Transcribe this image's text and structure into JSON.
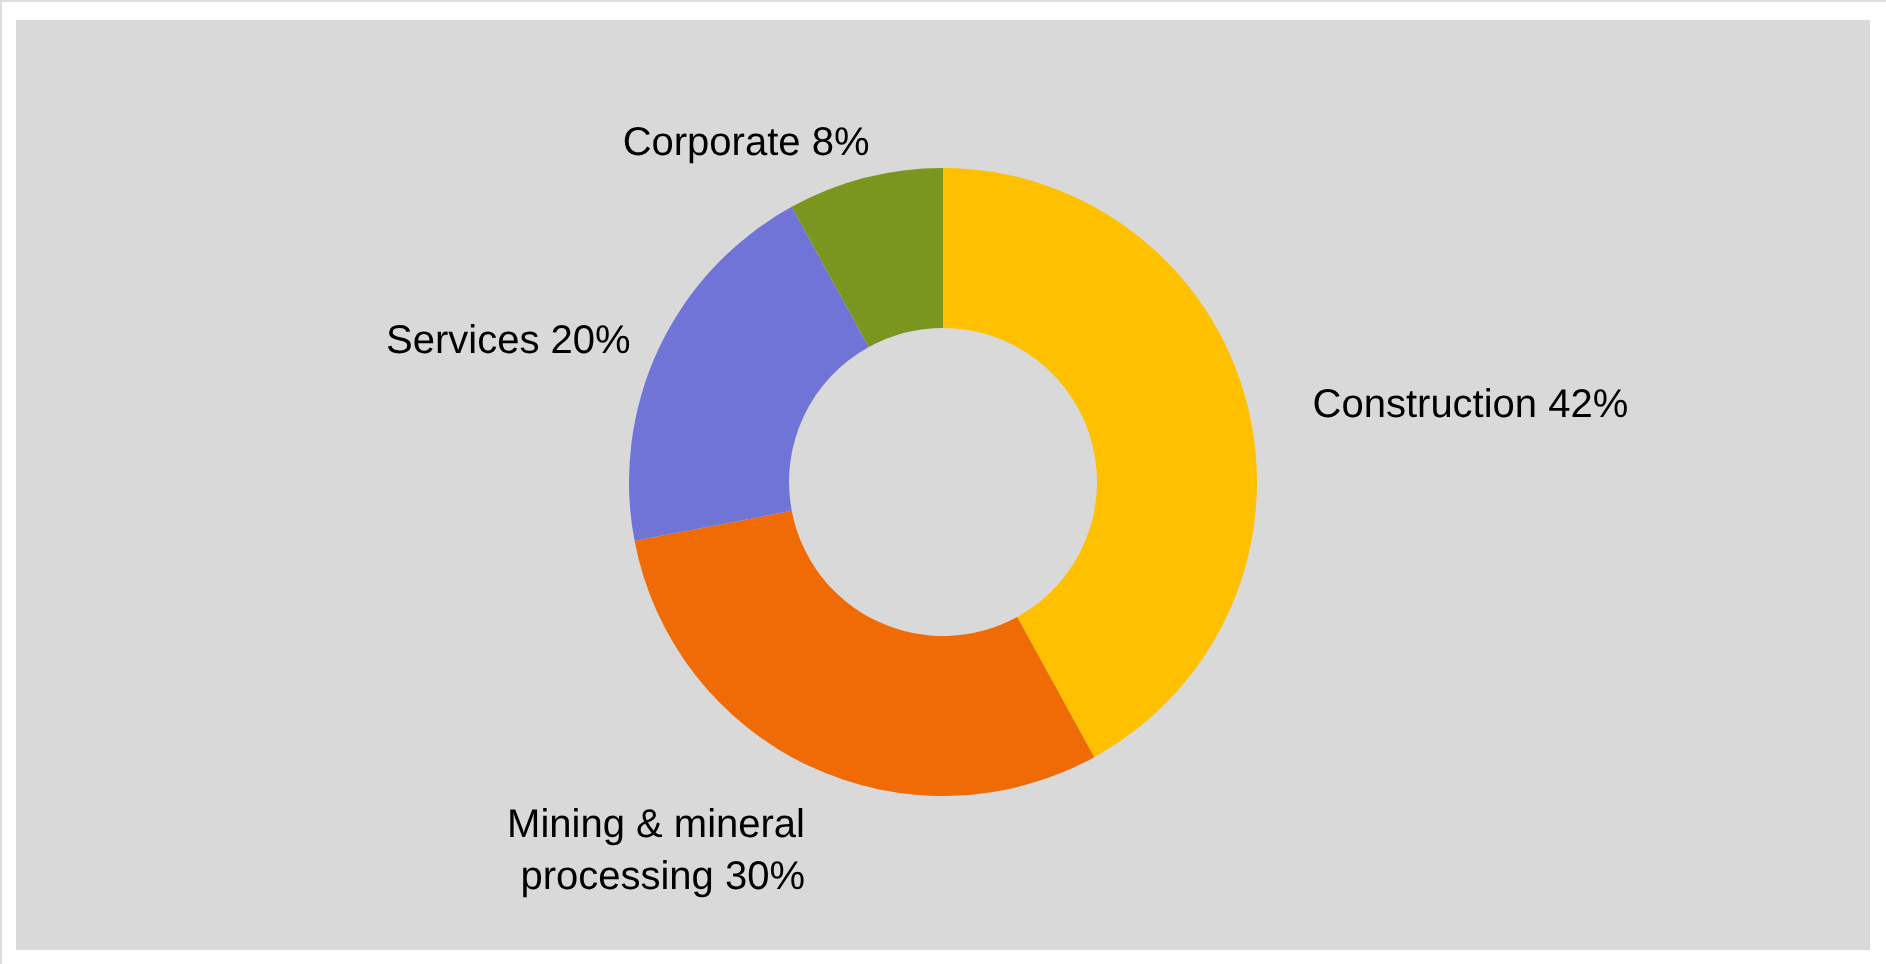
{
  "chart_data": {
    "type": "donut",
    "categories": [
      "Construction",
      "Mining & mineral processing",
      "Services",
      "Corporate"
    ],
    "values": [
      42,
      30,
      20,
      8
    ],
    "colors": [
      "#ffc000",
      "#f06a05",
      "#6f74d6",
      "#7a961e"
    ],
    "value_labels": [
      "42%",
      "30%",
      "20%",
      "8%"
    ]
  }
}
